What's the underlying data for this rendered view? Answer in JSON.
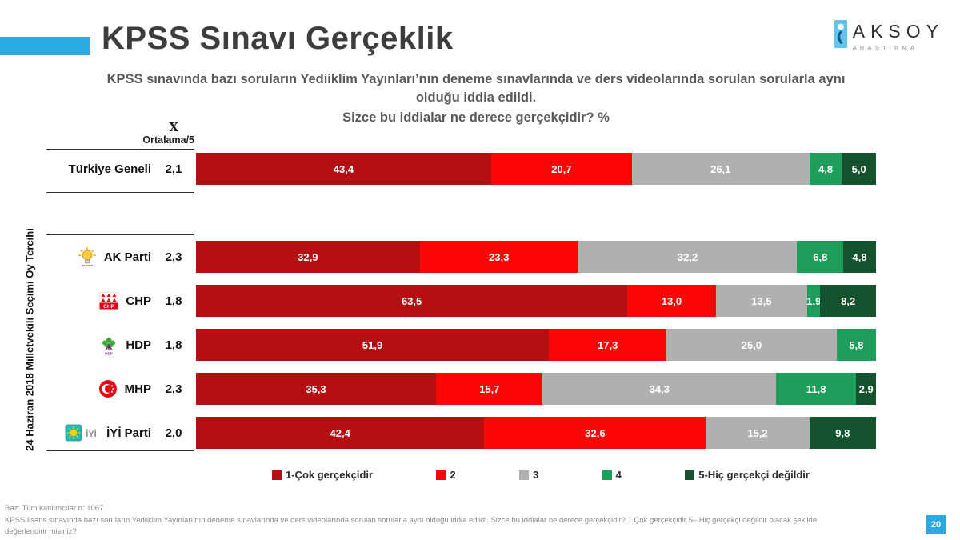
{
  "header": {
    "title": "KPSS Sınavı Gerçeklik",
    "logo_name": "AKSOY",
    "logo_sub": "ARAŞTIRMA"
  },
  "subtitle": {
    "claim": "KPSS sınavında bazı soruların  Yediiklim  Yayınları’nın deneme sınavlarında ve ders videolarında sorulan sorularla aynı olduğu iddia edildi.",
    "question": "Sizce bu iddialar ne derece gerçekçidir? %"
  },
  "side_label": "24 Haziran 2018 Milletvekili Seçimi Oy Tercihi",
  "mean_header": {
    "symbol": "X",
    "label": "Ortalama/5"
  },
  "chart_data": {
    "type": "bar",
    "stacked": true,
    "orientation": "horizontal",
    "unit": "%",
    "axis_range": [
      0,
      100
    ],
    "legend_position": "bottom",
    "series": [
      {
        "name": "1-Çok gerçekçidir",
        "color": "#b50f12"
      },
      {
        "name": "2",
        "color": "#fb0505"
      },
      {
        "name": "3",
        "color": "#b0b0b0"
      },
      {
        "name": "4",
        "color": "#1e9e5a"
      },
      {
        "name": "5-Hiç gerçekçi değildir",
        "color": "#14532d"
      }
    ],
    "rows": [
      {
        "id": "turkiye-geneli",
        "label": "Türkiye Geneli",
        "mean": "2,1",
        "icon": null,
        "values": [
          43.4,
          20.7,
          26.1,
          4.8,
          5.0
        ]
      },
      {
        "id": "ak-parti",
        "label": "AK Parti",
        "mean": "2,3",
        "icon": "akparti",
        "values": [
          32.9,
          23.3,
          32.2,
          6.8,
          4.8
        ]
      },
      {
        "id": "chp",
        "label": "CHP",
        "mean": "1,8",
        "icon": "chp",
        "values": [
          63.5,
          13.0,
          13.5,
          1.9,
          8.2
        ]
      },
      {
        "id": "hdp",
        "label": "HDP",
        "mean": "1,8",
        "icon": "hdp",
        "values": [
          51.9,
          17.3,
          25.0,
          5.8,
          0
        ]
      },
      {
        "id": "mhp",
        "label": "MHP",
        "mean": "2,3",
        "icon": "mhp",
        "values": [
          35.3,
          15.7,
          34.3,
          11.8,
          2.9
        ]
      },
      {
        "id": "iyi-parti",
        "label": "İYİ Parti",
        "mean": "2,0",
        "icon": "iyi",
        "values": [
          42.4,
          32.6,
          15.2,
          0,
          9.8
        ]
      }
    ]
  },
  "footer": {
    "line1": "Baz: Tüm katılımcılar n: 1067",
    "line2": "KPSS lisans sınavında bazı soruların Yediiklim Yayınları’nın deneme sınavlarında ve ders videolarında sorulan sorularla aynı olduğu iddia edildi. Sizce bu iddialar ne derece gerçekçidir? 1 Çok gerçekçidir 5– Hiç gerçekçi değildir olacak şekilde",
    "line3": "değerlendirir misiniz?",
    "page_number": "20"
  },
  "colors": {
    "accent": "#29abe2",
    "title_text": "#3d3d3d",
    "subtitle_text": "#595959"
  }
}
